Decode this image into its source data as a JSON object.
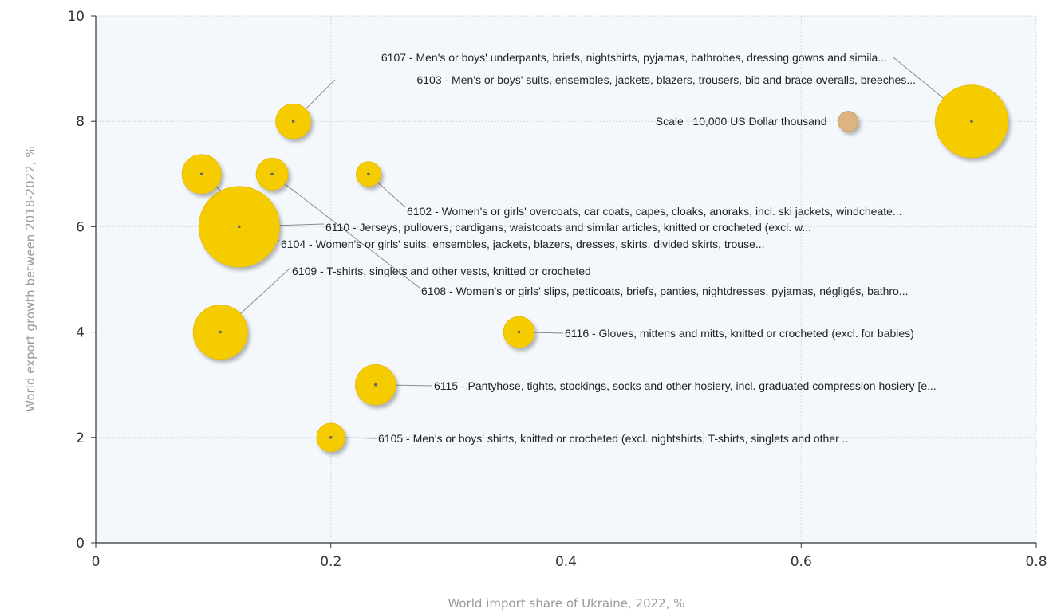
{
  "chart_data": {
    "type": "scatter",
    "subtype": "bubble",
    "xlabel": "World import share of Ukraine, 2022, %",
    "ylabel": "World export growth between 2018-2022, %",
    "xlim": [
      0,
      0.8
    ],
    "ylim": [
      0,
      10
    ],
    "xticks": [
      "0",
      "0.2",
      "0.4",
      "0.6",
      "0.8"
    ],
    "yticks": [
      "0",
      "2",
      "4",
      "6",
      "8",
      "10"
    ],
    "grid": true,
    "bubble_color": "#f5cc00",
    "scale_color": "#ddb47f",
    "plot_background": "#f4f8fc",
    "scale_label": "Scale : 10,000 US Dollar thousand",
    "points": [
      {
        "code": "6107",
        "label": "6107 - Men's or boys' underpants, briefs, nightshirts, pyjamas, bathrobes, dressing gowns and simila...",
        "x": 0.745,
        "y": 8.0,
        "size": 52000
      },
      {
        "code": "6103",
        "label": "6103 - Men's or boys' suits, ensembles, jackets, blazers, trousers, bib and brace overalls, breeches...",
        "x": 0.168,
        "y": 8.0,
        "size": 12000
      },
      {
        "code": "6102",
        "label": "6102 - Women's or girls' overcoats, car coats, capes, cloaks, anoraks, incl. ski jackets, windcheate...",
        "x": 0.232,
        "y": 7.0,
        "size": 6000
      },
      {
        "code": "6110",
        "label": "6110 - Jerseys, pullovers, cardigans, waistcoats and similar articles, knitted or crocheted (excl. w...",
        "x": 0.122,
        "y": 6.0,
        "size": 64000
      },
      {
        "code": "6104",
        "label": "6104 - Women's or girls' suits, ensembles, jackets, blazers, dresses, skirts, divided skirts, trouse...",
        "x": 0.09,
        "y": 7.0,
        "size": 15000
      },
      {
        "code": "6108",
        "label": "6108 - Women's or girls' slips, petticoats, briefs, panties, nightdresses, pyjamas, négligés, bathro...",
        "x": 0.15,
        "y": 7.0,
        "size": 10000
      },
      {
        "code": "6109",
        "label": "6109 - T-shirts, singlets and other vests, knitted or crocheted",
        "x": 0.106,
        "y": 4.0,
        "size": 29000
      },
      {
        "code": "6116",
        "label": "6116 - Gloves, mittens and mitts, knitted or crocheted (excl. for babies)",
        "x": 0.36,
        "y": 4.0,
        "size": 9500
      },
      {
        "code": "6115",
        "label": "6115 - Pantyhose, tights, stockings, socks and other hosiery, incl. graduated compression hosiery [e...",
        "x": 0.238,
        "y": 3.0,
        "size": 16000
      },
      {
        "code": "6105",
        "label": "6105 - Men's or boys' shirts, knitted or crocheted (excl. nightshirts, T-shirts, singlets and other ...",
        "x": 0.2,
        "y": 2.0,
        "size": 8000
      }
    ],
    "scale_bubble": {
      "x": 0.64,
      "y": 8.0,
      "size": 4000
    }
  }
}
